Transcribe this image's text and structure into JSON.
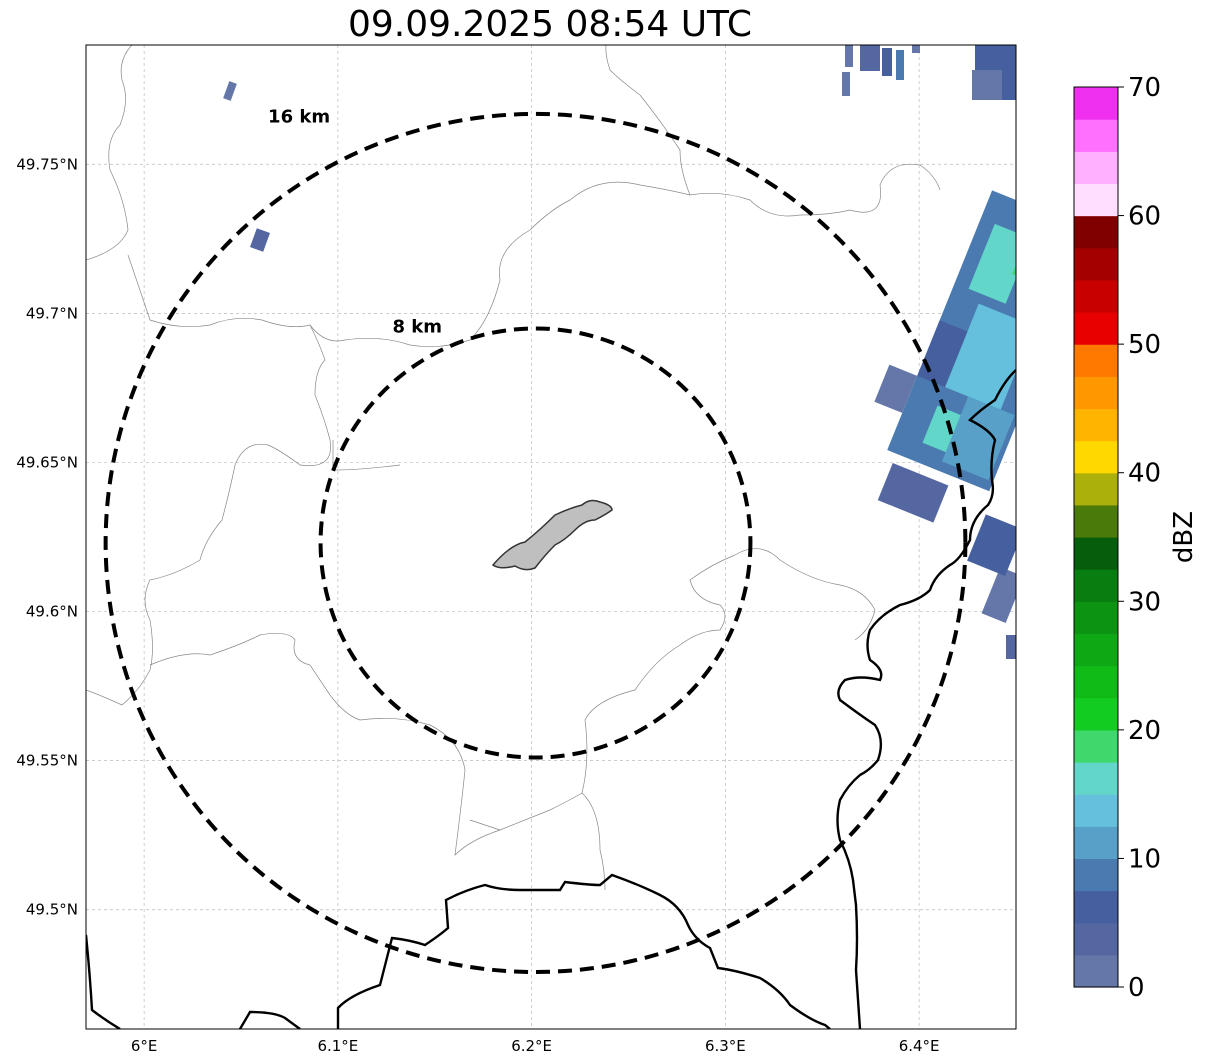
{
  "title": "09.09.2025 08:54 UTC",
  "map": {
    "lon_range": [
      5.97,
      6.45
    ],
    "lat_range": [
      49.46,
      49.79
    ],
    "lon_ticks": [
      {
        "value": 6.0,
        "label": "6°E"
      },
      {
        "value": 6.1,
        "label": "6.1°E"
      },
      {
        "value": 6.2,
        "label": "6.2°E"
      },
      {
        "value": 6.3,
        "label": "6.3°E"
      },
      {
        "value": 6.4,
        "label": "6.4°E"
      }
    ],
    "lat_ticks": [
      {
        "value": 49.75,
        "label": "49.75°N"
      },
      {
        "value": 49.7,
        "label": "49.7°N"
      },
      {
        "value": 49.65,
        "label": "49.65°N"
      },
      {
        "value": 49.6,
        "label": "49.6°N"
      },
      {
        "value": 49.55,
        "label": "49.55°N"
      },
      {
        "value": 49.5,
        "label": "49.5°N"
      }
    ],
    "grid": true,
    "center": {
      "lon": 6.202,
      "lat": 49.623
    },
    "range_rings": [
      {
        "radius_km": 8,
        "label": "8 km"
      },
      {
        "radius_km": 16,
        "label": "16 km"
      }
    ]
  },
  "colorbar": {
    "label": "dBZ",
    "min": 0,
    "max": 70,
    "ticks": [
      {
        "value": 0,
        "label": "0"
      },
      {
        "value": 10,
        "label": "10"
      },
      {
        "value": 20,
        "label": "20"
      },
      {
        "value": 30,
        "label": "30"
      },
      {
        "value": 40,
        "label": "40"
      },
      {
        "value": 50,
        "label": "50"
      },
      {
        "value": 60,
        "label": "60"
      },
      {
        "value": 70,
        "label": "70"
      }
    ],
    "colors": [
      "#6477a8",
      "#5467a0",
      "#465f9f",
      "#4a7ab0",
      "#58a0c8",
      "#64c0dc",
      "#62d6c8",
      "#3ed86c",
      "#12cc22",
      "#10bb18",
      "#0ea814",
      "#0c9312",
      "#087d10",
      "#065e0c",
      "#4a7a0a",
      "#acb00a",
      "#ffd800",
      "#ffb400",
      "#ff9800",
      "#ff7800",
      "#e80000",
      "#c80000",
      "#a40000",
      "#800000",
      "#ffdeff",
      "#ffb0ff",
      "#ff70ff",
      "#f030f0"
    ]
  }
}
